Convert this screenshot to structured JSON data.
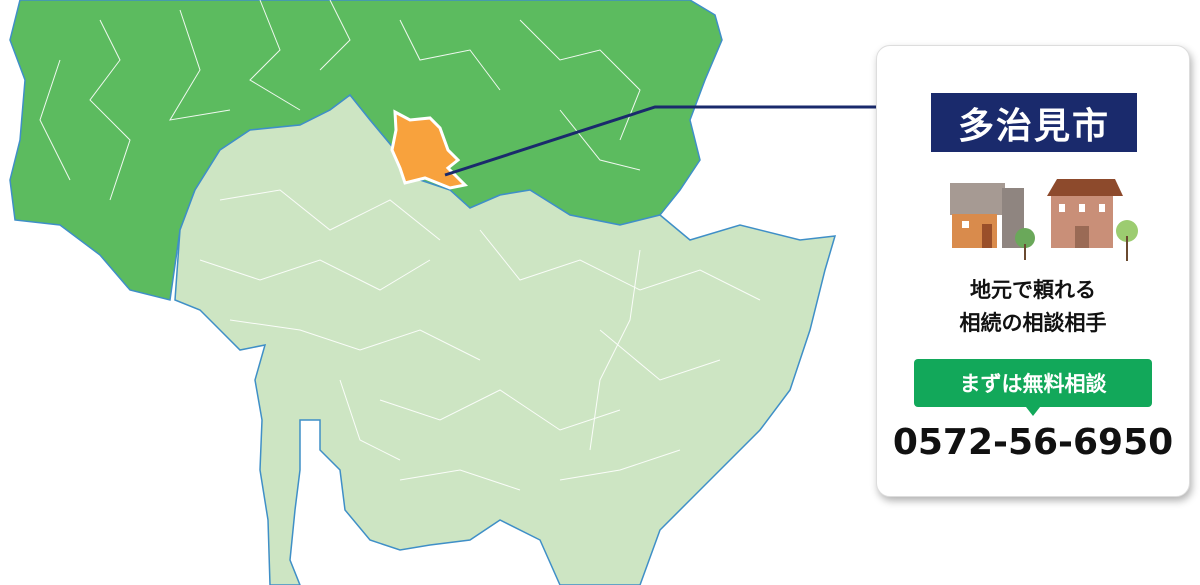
{
  "map": {
    "highlighted_city": "多治見市",
    "colors": {
      "outer_region": "#5cbb5f",
      "inner_region": "#cde5c3",
      "highlight": "#f8a23d",
      "leader_line": "#1a2a6c",
      "water": "#ffffff"
    }
  },
  "card": {
    "city_label": "多治見市",
    "tagline_line1": "地元で頼れる",
    "tagline_line2": "相続の相談相手",
    "cta_label": "まずは無料相談",
    "phone": "0572-56-6950",
    "colors": {
      "city_bg": "#1a2a6c",
      "cta_bg": "#12a85a"
    },
    "illustration_icons": [
      "modern-house-icon",
      "brick-house-icon",
      "tree-icon"
    ]
  }
}
